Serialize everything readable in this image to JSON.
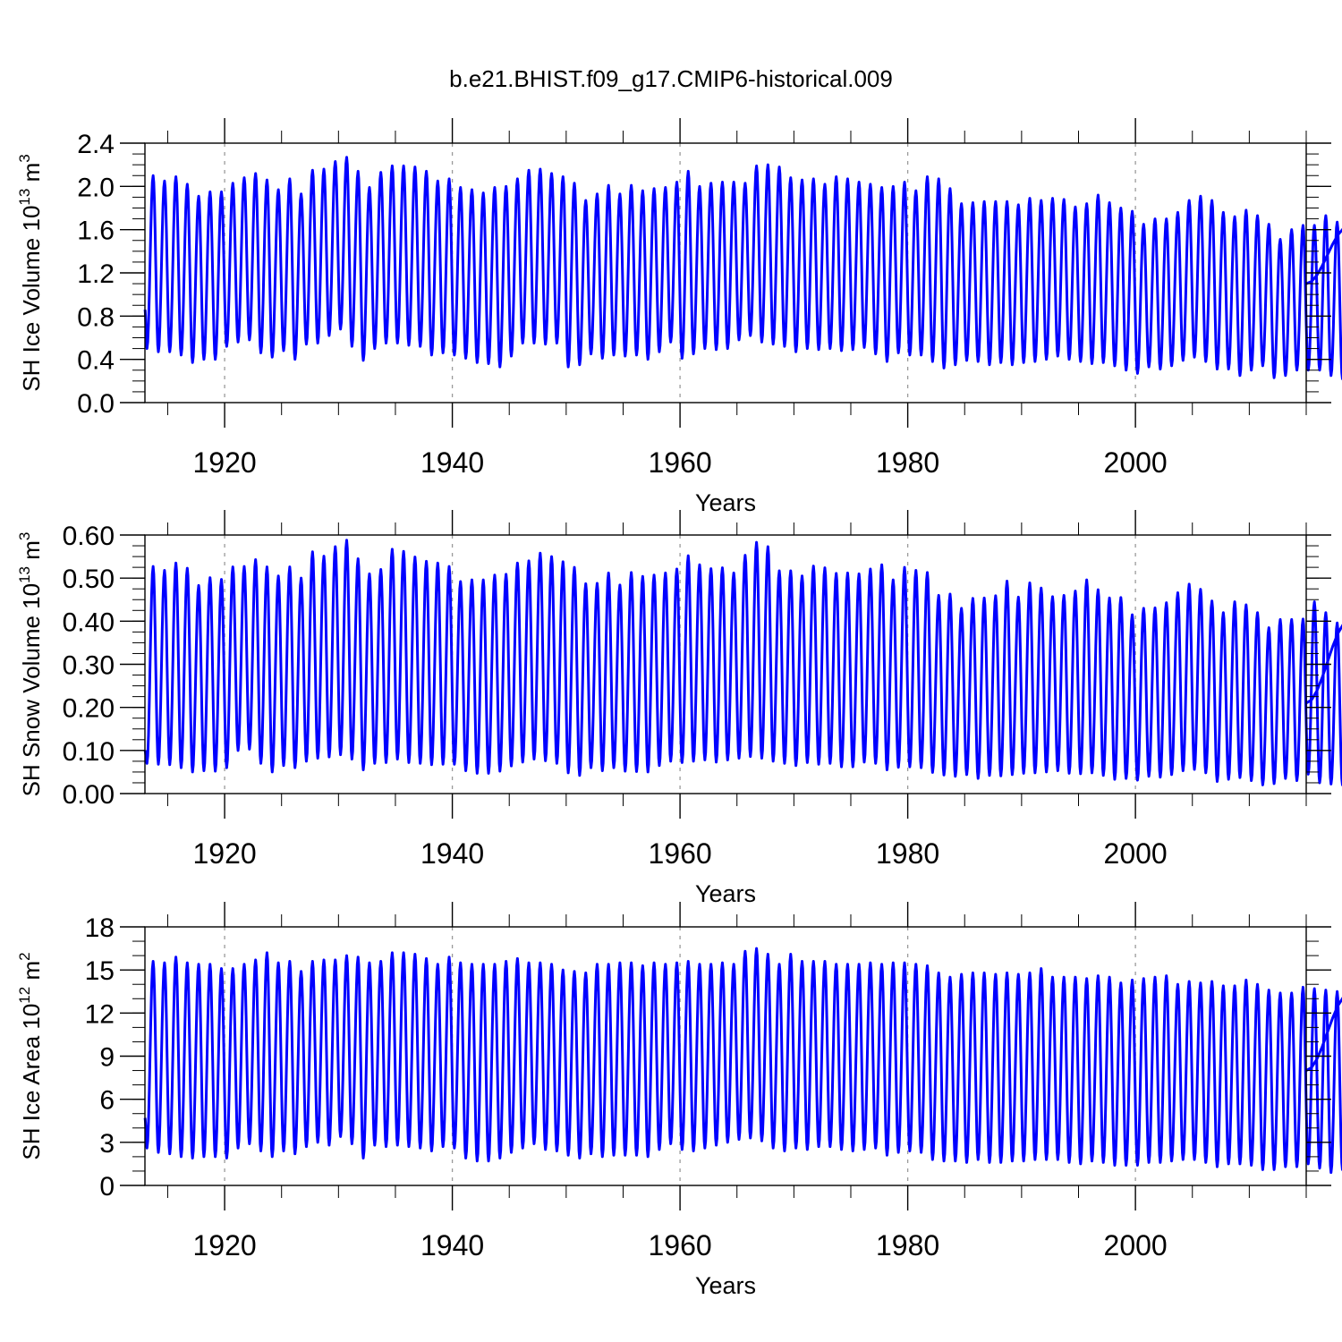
{
  "title": "b.e21.BHIST.f09_g17.CMIP6-historical.009",
  "line_color": "#0000ff",
  "chart_data": [
    {
      "type": "line",
      "name": "ice-volume",
      "xlabel": "Years",
      "ylabel": {
        "prefix": "SH Ice Volume 10",
        "exp1": "13",
        "mid": " m",
        "exp2": "3"
      },
      "xlim": [
        1913,
        2015
      ],
      "ylim": [
        0.0,
        2.4
      ],
      "x_ticks": [
        1920,
        1940,
        1960,
        1980,
        2000
      ],
      "y_ticks": [
        0.0,
        0.4,
        0.8,
        1.2,
        1.6,
        2.0,
        2.4
      ],
      "y_tick_labels": [
        "0.0",
        "0.4",
        "0.8",
        "1.2",
        "1.6",
        "2.0",
        "2.4"
      ],
      "y_minor_step": 0.1,
      "grid": "vertical dashed at major x ticks",
      "series_start": {
        "year": 1913.0,
        "value": 0.86
      },
      "series_end": {
        "year": 2015.0,
        "value": 1.1
      },
      "annual_max": [
        2.1,
        2.05,
        2.09,
        2.02,
        1.91,
        1.95,
        1.95,
        2.03,
        2.08,
        2.12,
        2.06,
        1.97,
        2.07,
        1.93,
        2.15,
        2.16,
        2.23,
        2.27,
        2.14,
        1.99,
        2.13,
        2.19,
        2.19,
        2.18,
        2.14,
        2.05,
        2.07,
        1.99,
        1.97,
        1.94,
        1.99,
        2.0,
        2.07,
        2.15,
        2.16,
        2.12,
        2.09,
        2.03,
        1.87,
        1.93,
        2.01,
        1.93,
        2.01,
        1.96,
        1.98,
        1.99,
        2.04,
        2.14,
        2.0,
        2.03,
        2.04,
        2.04,
        2.03,
        2.19,
        2.2,
        2.18,
        2.08,
        2.06,
        2.07,
        2.02,
        2.09,
        2.07,
        2.04,
        2.02,
        1.99,
        2.0,
        2.04,
        1.96,
        2.09,
        2.07,
        1.98,
        1.84,
        1.85,
        1.86,
        1.86,
        1.86,
        1.83,
        1.89,
        1.87,
        1.89,
        1.88,
        1.81,
        1.84,
        1.92,
        1.85,
        1.8,
        1.77,
        1.65,
        1.7,
        1.7,
        1.76,
        1.87,
        1.91,
        1.87,
        1.76,
        1.72,
        1.78,
        1.73,
        1.65,
        1.51,
        1.6,
        1.64,
        1.64,
        1.73,
        1.67,
        1.63
      ],
      "annual_min": [
        0.5,
        0.47,
        0.47,
        0.44,
        0.37,
        0.4,
        0.4,
        0.52,
        0.56,
        0.58,
        0.46,
        0.42,
        0.48,
        0.4,
        0.54,
        0.55,
        0.62,
        0.68,
        0.52,
        0.39,
        0.5,
        0.55,
        0.55,
        0.53,
        0.52,
        0.44,
        0.46,
        0.44,
        0.41,
        0.37,
        0.36,
        0.33,
        0.43,
        0.55,
        0.55,
        0.54,
        0.55,
        0.33,
        0.35,
        0.45,
        0.41,
        0.44,
        0.43,
        0.44,
        0.4,
        0.47,
        0.56,
        0.41,
        0.45,
        0.5,
        0.49,
        0.5,
        0.58,
        0.62,
        0.56,
        0.54,
        0.52,
        0.47,
        0.5,
        0.49,
        0.5,
        0.48,
        0.49,
        0.51,
        0.45,
        0.38,
        0.46,
        0.44,
        0.44,
        0.38,
        0.32,
        0.35,
        0.39,
        0.38,
        0.35,
        0.37,
        0.35,
        0.37,
        0.38,
        0.4,
        0.43,
        0.4,
        0.38,
        0.36,
        0.37,
        0.34,
        0.3,
        0.27,
        0.33,
        0.31,
        0.34,
        0.39,
        0.42,
        0.38,
        0.31,
        0.31,
        0.25,
        0.3,
        0.34,
        0.23,
        0.25,
        0.3,
        0.3,
        0.3,
        0.25,
        0.22
      ]
    },
    {
      "type": "line",
      "name": "snow-volume",
      "xlabel": "Years",
      "ylabel": {
        "prefix": "SH Snow Volume 10",
        "exp1": "13",
        "mid": " m",
        "exp2": "3"
      },
      "xlim": [
        1913,
        2015
      ],
      "ylim": [
        0.0,
        0.6
      ],
      "x_ticks": [
        1920,
        1940,
        1960,
        1980,
        2000
      ],
      "y_ticks": [
        0.0,
        0.1,
        0.2,
        0.3,
        0.4,
        0.5,
        0.6
      ],
      "y_tick_labels": [
        "0.00",
        "0.10",
        "0.20",
        "0.30",
        "0.40",
        "0.50",
        "0.60"
      ],
      "y_minor_step": 0.025,
      "grid": "vertical dashed at major x ticks",
      "series_start": {
        "year": 1913.0,
        "value": 0.1
      },
      "series_end": {
        "year": 2015.0,
        "value": 0.21
      },
      "annual_max": [
        0.527,
        0.518,
        0.535,
        0.523,
        0.483,
        0.501,
        0.497,
        0.526,
        0.527,
        0.543,
        0.526,
        0.505,
        0.526,
        0.5,
        0.561,
        0.551,
        0.573,
        0.588,
        0.545,
        0.51,
        0.52,
        0.567,
        0.562,
        0.549,
        0.539,
        0.535,
        0.527,
        0.492,
        0.496,
        0.496,
        0.507,
        0.509,
        0.535,
        0.54,
        0.558,
        0.55,
        0.538,
        0.525,
        0.487,
        0.488,
        0.512,
        0.484,
        0.513,
        0.504,
        0.507,
        0.512,
        0.521,
        0.552,
        0.531,
        0.522,
        0.524,
        0.512,
        0.553,
        0.583,
        0.573,
        0.517,
        0.517,
        0.505,
        0.528,
        0.524,
        0.511,
        0.512,
        0.51,
        0.521,
        0.531,
        0.496,
        0.525,
        0.518,
        0.513,
        0.46,
        0.463,
        0.43,
        0.453,
        0.454,
        0.459,
        0.493,
        0.456,
        0.489,
        0.477,
        0.457,
        0.46,
        0.47,
        0.496,
        0.473,
        0.454,
        0.455,
        0.415,
        0.43,
        0.431,
        0.443,
        0.466,
        0.486,
        0.474,
        0.447,
        0.42,
        0.445,
        0.438,
        0.42,
        0.385,
        0.404,
        0.404,
        0.405,
        0.445,
        0.42,
        0.396,
        0.4
      ],
      "annual_max_start": 0.527,
      "annual_min": [
        0.07,
        0.068,
        0.067,
        0.06,
        0.05,
        0.053,
        0.052,
        0.06,
        0.1,
        0.103,
        0.07,
        0.05,
        0.065,
        0.06,
        0.075,
        0.082,
        0.085,
        0.09,
        0.08,
        0.055,
        0.07,
        0.072,
        0.08,
        0.072,
        0.07,
        0.067,
        0.068,
        0.068,
        0.053,
        0.047,
        0.047,
        0.052,
        0.064,
        0.073,
        0.08,
        0.076,
        0.07,
        0.048,
        0.042,
        0.06,
        0.053,
        0.06,
        0.052,
        0.051,
        0.05,
        0.065,
        0.075,
        0.072,
        0.075,
        0.078,
        0.073,
        0.078,
        0.082,
        0.086,
        0.082,
        0.075,
        0.07,
        0.065,
        0.072,
        0.068,
        0.07,
        0.062,
        0.062,
        0.073,
        0.07,
        0.055,
        0.061,
        0.062,
        0.06,
        0.049,
        0.043,
        0.04,
        0.044,
        0.035,
        0.042,
        0.041,
        0.044,
        0.047,
        0.048,
        0.05,
        0.053,
        0.047,
        0.046,
        0.048,
        0.042,
        0.033,
        0.035,
        0.031,
        0.04,
        0.038,
        0.044,
        0.053,
        0.056,
        0.048,
        0.028,
        0.033,
        0.037,
        0.03,
        0.02,
        0.023,
        0.035,
        0.03,
        0.045,
        0.025,
        0.022,
        0.02
      ]
    },
    {
      "type": "line",
      "name": "ice-area",
      "xlabel": "Years",
      "ylabel": {
        "prefix": "SH Ice Area 10",
        "exp1": "12",
        "mid": " m",
        "exp2": "2"
      },
      "xlim": [
        1913,
        2015
      ],
      "ylim": [
        0,
        18
      ],
      "x_ticks": [
        1920,
        1940,
        1960,
        1980,
        2000
      ],
      "y_ticks": [
        0,
        3,
        6,
        9,
        12,
        15,
        18
      ],
      "y_tick_labels": [
        "0",
        "3",
        "6",
        "9",
        "12",
        "15",
        "18"
      ],
      "y_minor_step": 1,
      "grid": "vertical dashed at major x ticks",
      "series_start": {
        "year": 1913.0,
        "value": 4.7
      },
      "series_end": {
        "year": 2015.0,
        "value": 8.0
      },
      "annual_max": [
        15.6,
        15.5,
        15.9,
        15.5,
        15.4,
        15.4,
        15.1,
        15.1,
        15.4,
        15.7,
        16.2,
        15.5,
        15.6,
        14.9,
        15.6,
        15.7,
        15.7,
        16.0,
        15.9,
        15.5,
        15.6,
        16.2,
        16.2,
        16.1,
        15.8,
        15.4,
        15.9,
        15.5,
        15.4,
        15.4,
        15.4,
        15.6,
        15.8,
        15.5,
        15.5,
        15.4,
        15.0,
        14.9,
        14.8,
        15.4,
        15.4,
        15.5,
        15.5,
        15.3,
        15.5,
        15.4,
        15.5,
        15.6,
        15.4,
        15.4,
        15.5,
        15.4,
        16.3,
        16.5,
        16.1,
        15.4,
        16.1,
        15.6,
        15.6,
        15.6,
        15.4,
        15.4,
        15.4,
        15.5,
        15.4,
        15.5,
        15.5,
        15.4,
        15.3,
        14.8,
        14.5,
        14.7,
        14.8,
        14.8,
        14.7,
        14.8,
        14.7,
        14.8,
        15.1,
        14.5,
        14.5,
        14.5,
        14.4,
        14.6,
        14.5,
        14.1,
        14.3,
        14.4,
        14.5,
        14.6,
        14.0,
        14.2,
        14.1,
        14.2,
        13.9,
        13.9,
        14.3,
        14.0,
        13.6,
        13.4,
        13.4,
        13.8,
        13.7,
        13.6,
        13.5,
        13.3
      ],
      "annual_min": [
        2.6,
        2.3,
        2.2,
        2.0,
        1.9,
        2.0,
        2.0,
        1.9,
        2.6,
        2.9,
        2.4,
        2.0,
        2.4,
        2.2,
        2.7,
        3.0,
        2.8,
        3.4,
        2.9,
        1.9,
        2.8,
        2.7,
        2.8,
        2.7,
        2.6,
        2.4,
        2.7,
        2.6,
        1.9,
        1.7,
        1.7,
        1.9,
        2.3,
        2.6,
        2.9,
        2.5,
        2.4,
        2.1,
        1.9,
        2.2,
        2.0,
        2.1,
        2.1,
        2.1,
        2.0,
        2.5,
        2.9,
        2.5,
        2.4,
        2.6,
        2.8,
        3.0,
        3.2,
        3.3,
        3.1,
        2.6,
        2.4,
        2.6,
        2.5,
        2.7,
        2.7,
        2.5,
        2.4,
        2.5,
        2.6,
        2.1,
        2.3,
        2.4,
        2.3,
        1.8,
        1.7,
        1.7,
        1.6,
        1.8,
        1.6,
        1.6,
        1.7,
        1.7,
        1.8,
        1.8,
        1.8,
        1.6,
        1.5,
        1.7,
        1.6,
        1.4,
        1.4,
        1.4,
        1.6,
        1.6,
        1.7,
        1.8,
        1.8,
        1.6,
        1.3,
        1.5,
        1.5,
        1.4,
        1.1,
        1.1,
        1.3,
        1.3,
        1.5,
        1.2,
        0.9,
        1.1
      ]
    }
  ]
}
